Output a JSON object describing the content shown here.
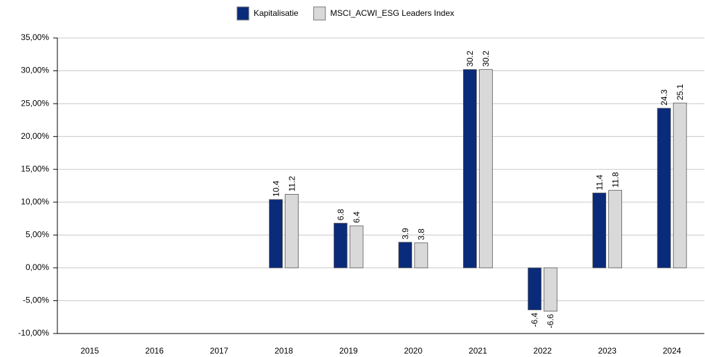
{
  "chart_data": {
    "type": "bar",
    "categories": [
      "2015",
      "2016",
      "2017",
      "2018",
      "2019",
      "2020",
      "2021",
      "2022",
      "2023",
      "2024"
    ],
    "series": [
      {
        "name": "Kapitalisatie",
        "color": "#0a2a7a",
        "values": [
          null,
          null,
          null,
          10.4,
          6.8,
          3.9,
          30.2,
          -6.4,
          11.4,
          24.3
        ]
      },
      {
        "name": "MSCI_ACWI_ESG Leaders Index",
        "color": "#d9d9d9",
        "values": [
          null,
          null,
          null,
          11.2,
          6.4,
          3.8,
          30.2,
          -6.6,
          11.8,
          25.1
        ]
      }
    ],
    "ylim": [
      -10,
      35
    ],
    "yticks": [
      {
        "value": -10,
        "label": "-10,00%"
      },
      {
        "value": -5,
        "label": "-5,00%"
      },
      {
        "value": 0,
        "label": "0,00%"
      },
      {
        "value": 5,
        "label": "5,00%"
      },
      {
        "value": 10,
        "label": "10,00%"
      },
      {
        "value": 15,
        "label": "15,00%"
      },
      {
        "value": 20,
        "label": "20,00%"
      },
      {
        "value": 25,
        "label": "25,00%"
      },
      {
        "value": 30,
        "label": "30,00%"
      },
      {
        "value": 35,
        "label": "35,00%"
      }
    ],
    "grid": true
  }
}
